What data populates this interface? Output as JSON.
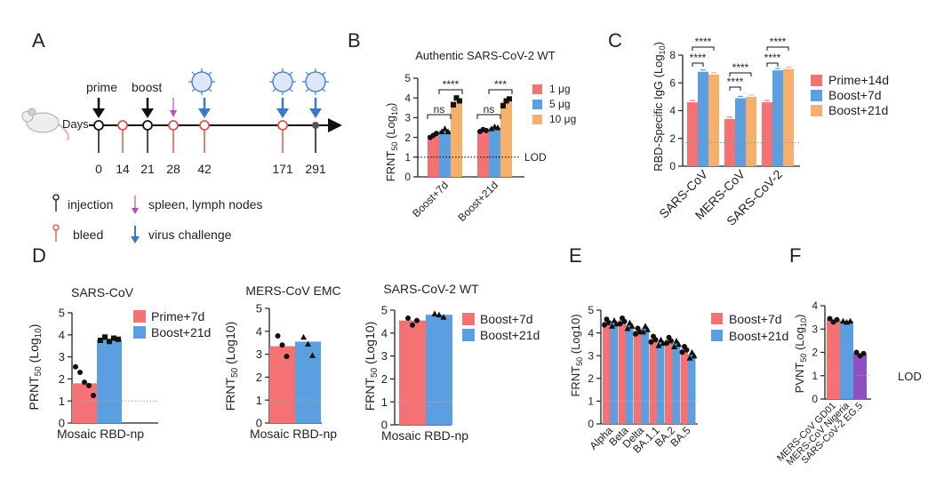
{
  "colors": {
    "red": "#f47174",
    "blue": "#5b9fe0",
    "orange": "#f6b06b",
    "purple": "#8e4fc0",
    "axis": "#222222",
    "lod": "#666666",
    "arrow_black": "#111111",
    "arrow_blue": "#3a78c9",
    "arrow_pink": "#c04bb5",
    "bleed_red": "#d9534f"
  },
  "panel_a": {
    "letter": "A",
    "days_label": "Days",
    "days": [
      "0",
      "14",
      "21",
      "28",
      "42",
      "171",
      "291"
    ],
    "prime_label": "prime",
    "boost_label": "boost",
    "legend": {
      "injection": "injection",
      "spleen": "spleen, lymph nodes",
      "bleed": "bleed",
      "virus": "virus challenge"
    }
  },
  "chart_data": [
    {
      "panel": "B",
      "type": "bar",
      "title": "Authentic SARS-CoV-2 WT",
      "ylabel_main": "FRNT",
      "ylabel_sub": "50",
      "ylabel_tail": " (Log",
      "ylabel_sub2": "10",
      "ylabel_end": ")",
      "categories": [
        "Boost+7d",
        "Boost+21d"
      ],
      "ylim": [
        0,
        5
      ],
      "yticks": [
        "0",
        "1",
        "2",
        "3",
        "4",
        "5"
      ],
      "lod": 1,
      "lod_label": "LOD",
      "series": [
        {
          "name": "1 μg",
          "values": [
            2.1,
            2.35
          ]
        },
        {
          "name": "5  μg",
          "values": [
            2.35,
            2.5
          ]
        },
        {
          "name": "10 μg",
          "values": [
            3.85,
            3.8
          ]
        }
      ],
      "points": [
        [
          [
            2.0,
            2.1,
            2.2
          ],
          [
            2.3,
            2.45,
            2.3
          ],
          [
            3.65,
            4.0,
            3.85
          ]
        ],
        [
          [
            2.3,
            2.4,
            2.35
          ],
          [
            2.45,
            2.55,
            2.5
          ],
          [
            3.6,
            3.85,
            3.95
          ]
        ]
      ],
      "sig": [
        "ns",
        "****",
        "ns",
        "***"
      ]
    },
    {
      "panel": "C",
      "type": "bar",
      "ylabel": "RBD-Specific IgG (Log10)",
      "categories": [
        "SARS-CoV",
        "MERS-CoV",
        "SARS-CoV-2"
      ],
      "ylim": [
        0,
        8
      ],
      "yticks": [
        "0",
        "2",
        "4",
        "6",
        "8"
      ],
      "lod": 1.7,
      "series": [
        {
          "name": "Prime+14d",
          "values": [
            4.6,
            3.4,
            4.6
          ]
        },
        {
          "name": "Boost+7d",
          "values": [
            6.8,
            4.9,
            6.9
          ]
        },
        {
          "name": "Boost+21d",
          "values": [
            6.6,
            5.0,
            7.0
          ]
        }
      ],
      "sig": [
        "****",
        "****",
        "****",
        "****",
        "****",
        "****"
      ]
    },
    {
      "panel": "D1",
      "type": "bar",
      "title": "SARS-CoV",
      "ylabel": "PRNT50 (Log10)",
      "xlabel": "Mosaic RBD-np",
      "ylim": [
        0,
        5
      ],
      "yticks": [
        "0",
        "1",
        "2",
        "3",
        "4",
        "5"
      ],
      "lod": 1,
      "series": [
        {
          "name": "Prime+7d",
          "values": [
            1.8
          ],
          "points": [
            2.55,
            2.3,
            1.85,
            1.7,
            1.25
          ]
        },
        {
          "name": "Boost+21d",
          "values": [
            3.8
          ],
          "points": [
            3.75,
            3.9,
            3.7,
            3.85,
            3.8
          ]
        }
      ]
    },
    {
      "panel": "D2",
      "type": "bar",
      "title": "MERS-CoV EMC",
      "ylabel": "FRNT50 (Log10)",
      "xlabel": "Mosaic RBD-np",
      "ylim": [
        0,
        5
      ],
      "yticks": [
        "0",
        "1",
        "2",
        "3",
        "4",
        "5"
      ],
      "lod": 1,
      "series": [
        {
          "name": "Boost+7d",
          "values": [
            3.35
          ],
          "points": [
            3.8,
            3.4,
            2.9
          ]
        },
        {
          "name": "Boost+21d",
          "values": [
            3.55
          ],
          "points": [
            3.75,
            3.45,
            2.95
          ]
        }
      ]
    },
    {
      "panel": "D3",
      "type": "bar",
      "title": "SARS-CoV-2 WT",
      "ylabel": "FRNT50 (Log10)",
      "xlabel": "Mosaic RBD-np",
      "ylim": [
        0,
        5
      ],
      "yticks": [
        "0",
        "1",
        "2",
        "3",
        "4",
        "5"
      ],
      "lod": 1,
      "series": [
        {
          "name": "Boost+7d",
          "values": [
            4.55
          ],
          "points": [
            4.65,
            4.35,
            4.55
          ]
        },
        {
          "name": "Boost+21d",
          "values": [
            4.8
          ],
          "points": [
            4.85,
            4.8,
            4.7
          ]
        }
      ]
    },
    {
      "panel": "E",
      "type": "bar",
      "ylabel": "FRNT50 (Log10)",
      "categories": [
        "Alpha",
        "Beta",
        "Delta",
        "BA.1.1",
        "BA.2",
        "BA.5"
      ],
      "ylim": [
        0,
        5
      ],
      "yticks": [
        "0",
        "1",
        "2",
        "3",
        "4",
        "5"
      ],
      "lod": 1,
      "series": [
        {
          "name": "Boost+7d",
          "values": [
            4.5,
            4.55,
            4.1,
            3.75,
            3.7,
            3.3
          ]
        },
        {
          "name": "Boost+21d",
          "values": [
            4.45,
            4.35,
            4.2,
            3.6,
            3.55,
            3.05
          ]
        }
      ]
    },
    {
      "panel": "F",
      "type": "bar",
      "ylabel": "PVNT50 (Log10)",
      "categories": [
        "MERS-CoV GD01",
        "MERS-CoV Nigeria",
        "SARS-CoV-2 EG.5"
      ],
      "ylim": [
        0,
        4
      ],
      "yticks": [
        "0",
        "1",
        "2",
        "3",
        "4"
      ],
      "lod": 1,
      "lod_label": "LOD",
      "values": [
        3.4,
        3.35,
        1.95
      ],
      "points": [
        [
          3.45,
          3.3,
          3.4
        ],
        [
          3.35,
          3.3,
          3.35
        ],
        [
          2.0,
          1.85,
          1.95
        ]
      ]
    }
  ]
}
